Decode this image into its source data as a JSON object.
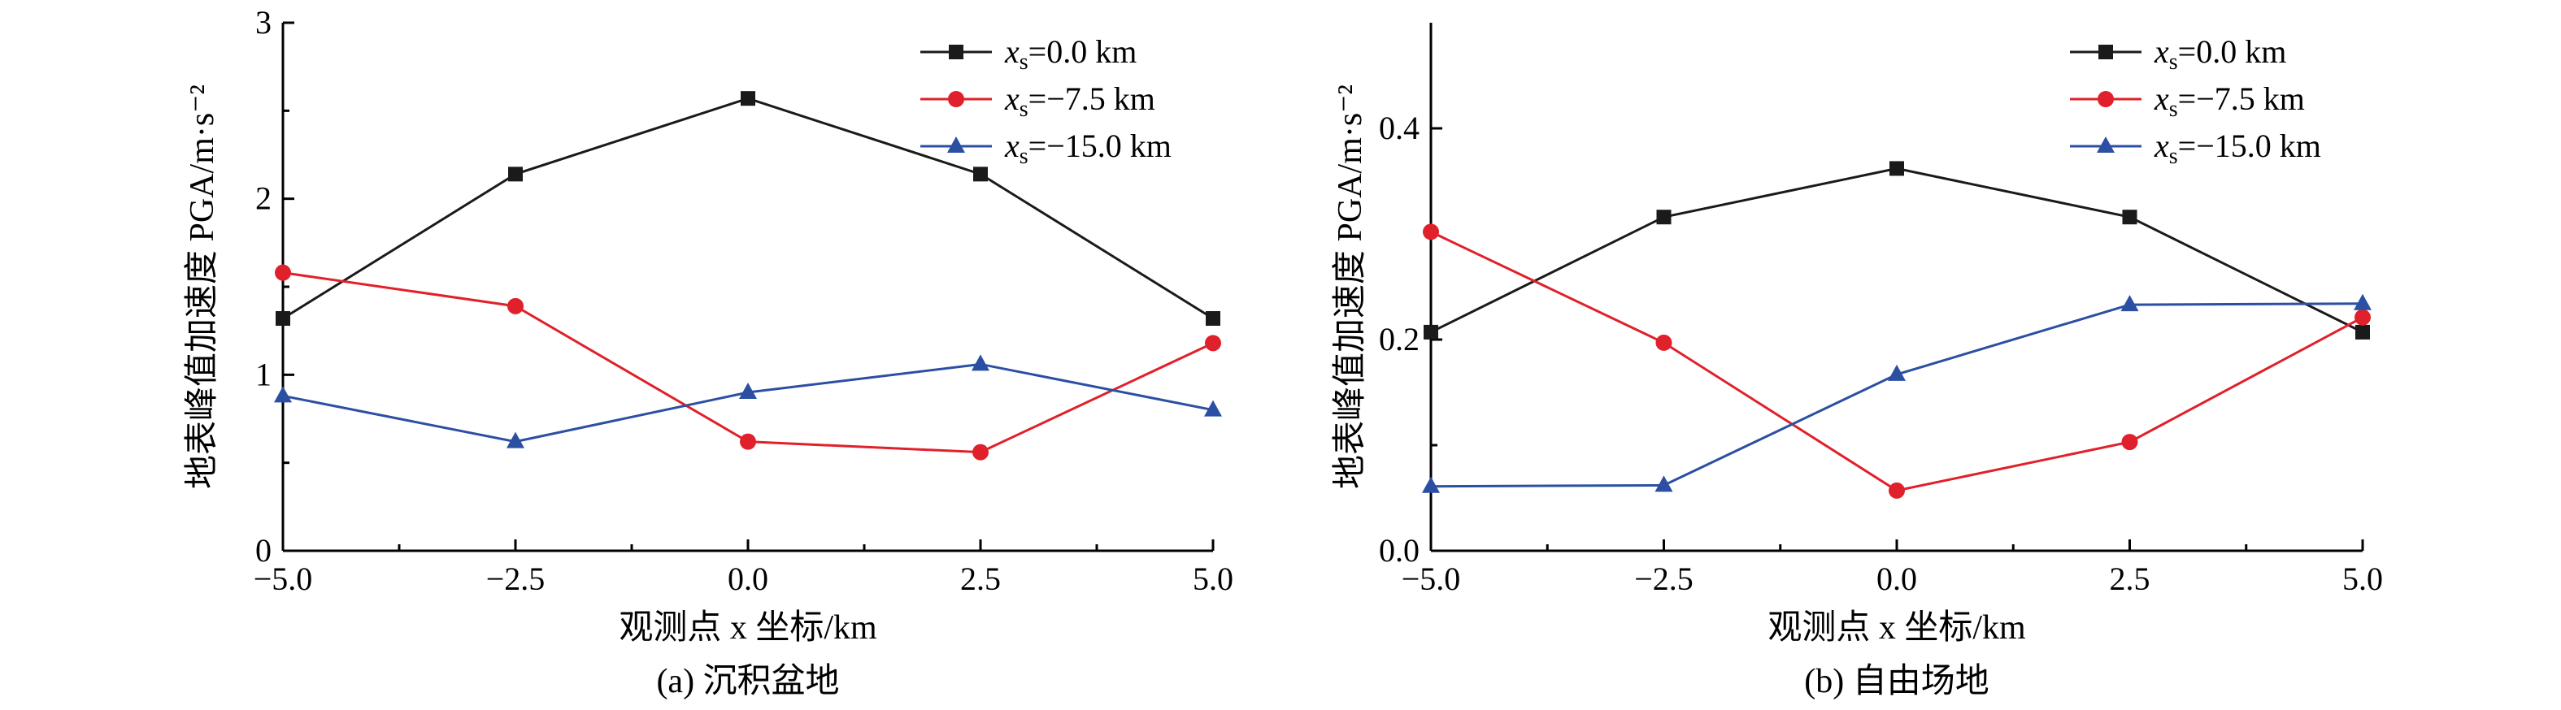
{
  "chart_data": [
    {
      "type": "line",
      "caption": "(a) 沉积盆地",
      "xlabel": "观测点 x 坐标/km",
      "ylabel": "地表峰值加速度 PGA/m·s⁻²",
      "x": [
        -5.0,
        -2.5,
        0.0,
        2.5,
        5.0
      ],
      "xlim": [
        -5.0,
        5.0
      ],
      "ylim": [
        0,
        3
      ],
      "xticks": [
        "−5.0",
        "−2.5",
        "0.0",
        "2.5",
        "5.0"
      ],
      "yticks": [
        "0",
        "1",
        "2",
        "3"
      ],
      "ytick_values": [
        0,
        1,
        2,
        3
      ],
      "legend_position": "top-right",
      "series": [
        {
          "name": "xs=0.0 km",
          "values": [
            1.32,
            2.14,
            2.57,
            2.14,
            1.32
          ],
          "color": "#1a1a1a",
          "marker": "square"
        },
        {
          "name": "xs=−7.5 km",
          "values": [
            1.58,
            1.39,
            0.62,
            0.56,
            1.18
          ],
          "color": "#e0202a",
          "marker": "circle"
        },
        {
          "name": "xs=−15.0 km",
          "values": [
            0.88,
            0.62,
            0.9,
            1.06,
            0.8
          ],
          "color": "#2b4fa3",
          "marker": "triangle"
        }
      ]
    },
    {
      "type": "line",
      "caption": "(b) 自由场地",
      "xlabel": "观测点 x 坐标/km",
      "ylabel": "地表峰值加速度 PGA/m·s⁻²",
      "x": [
        -5.0,
        -2.5,
        0.0,
        2.5,
        5.0
      ],
      "xlim": [
        -5.0,
        5.0
      ],
      "ylim": [
        0,
        0.5
      ],
      "xticks": [
        "−5.0",
        "−2.5",
        "0.0",
        "2.5",
        "5.0"
      ],
      "yticks": [
        "0.0",
        "0.2",
        "0.4"
      ],
      "ytick_values": [
        0,
        0.2,
        0.4
      ],
      "legend_position": "top-right",
      "series": [
        {
          "name": "xs=0.0 km",
          "values": [
            0.207,
            0.316,
            0.362,
            0.316,
            0.207
          ],
          "color": "#1a1a1a",
          "marker": "square"
        },
        {
          "name": "xs=−7.5 km",
          "values": [
            0.302,
            0.197,
            0.057,
            0.103,
            0.221
          ],
          "color": "#e0202a",
          "marker": "circle"
        },
        {
          "name": "xs=−15.0 km",
          "values": [
            0.061,
            0.062,
            0.167,
            0.233,
            0.234
          ],
          "color": "#2b4fa3",
          "marker": "triangle"
        }
      ]
    }
  ]
}
